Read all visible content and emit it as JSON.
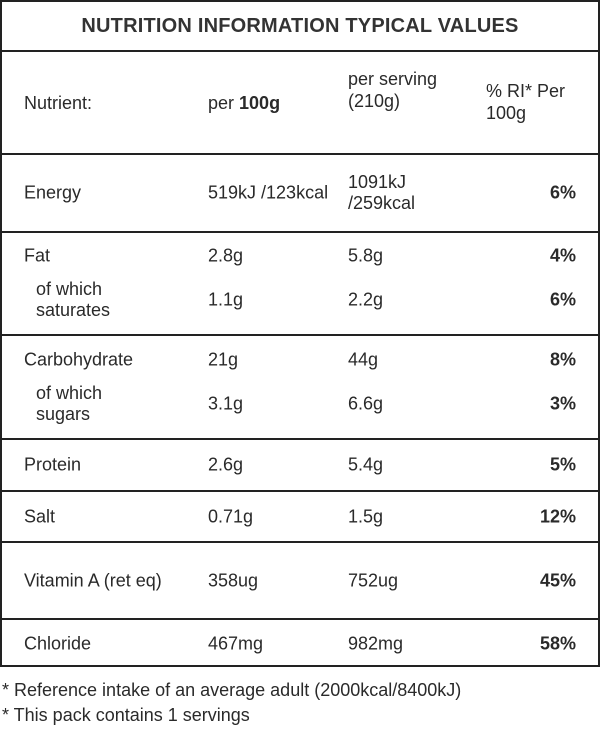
{
  "title": "NUTRITION INFORMATION TYPICAL VALUES",
  "header": {
    "nutrient": "Nutrient:",
    "per100_prefix": "per ",
    "per100_bold": "100g",
    "per_serving": "per serving (210g)",
    "ri": "% RI* Per 100g"
  },
  "rows": [
    {
      "name": "Energy",
      "per100": "519kJ /123kcal",
      "serving": "1091kJ /259kcal",
      "ri": "6%"
    },
    {
      "name": "Fat",
      "per100": "2.8g",
      "serving": "5.8g",
      "ri": "4%"
    },
    {
      "name": "of which saturates",
      "per100": "1.1g",
      "serving": "2.2g",
      "ri": "6%"
    },
    {
      "name": "Carbohydrate",
      "per100": "21g",
      "serving": "44g",
      "ri": "8%"
    },
    {
      "name": "of which sugars",
      "per100": "3.1g",
      "serving": "6.6g",
      "ri": "3%"
    },
    {
      "name": "Protein",
      "per100": "2.6g",
      "serving": "5.4g",
      "ri": "5%"
    },
    {
      "name": "Salt",
      "per100": "0.71g",
      "serving": "1.5g",
      "ri": "12%"
    },
    {
      "name": "Vitamin A (ret eq)",
      "per100": "358ug",
      "serving": "752ug",
      "ri": "45%"
    },
    {
      "name": "Chloride",
      "per100": "467mg",
      "serving": "982mg",
      "ri": "58%"
    }
  ],
  "footnotes": [
    "* Reference intake of an average adult (2000kcal/8400kJ)",
    "* This pack contains 1 servings"
  ]
}
